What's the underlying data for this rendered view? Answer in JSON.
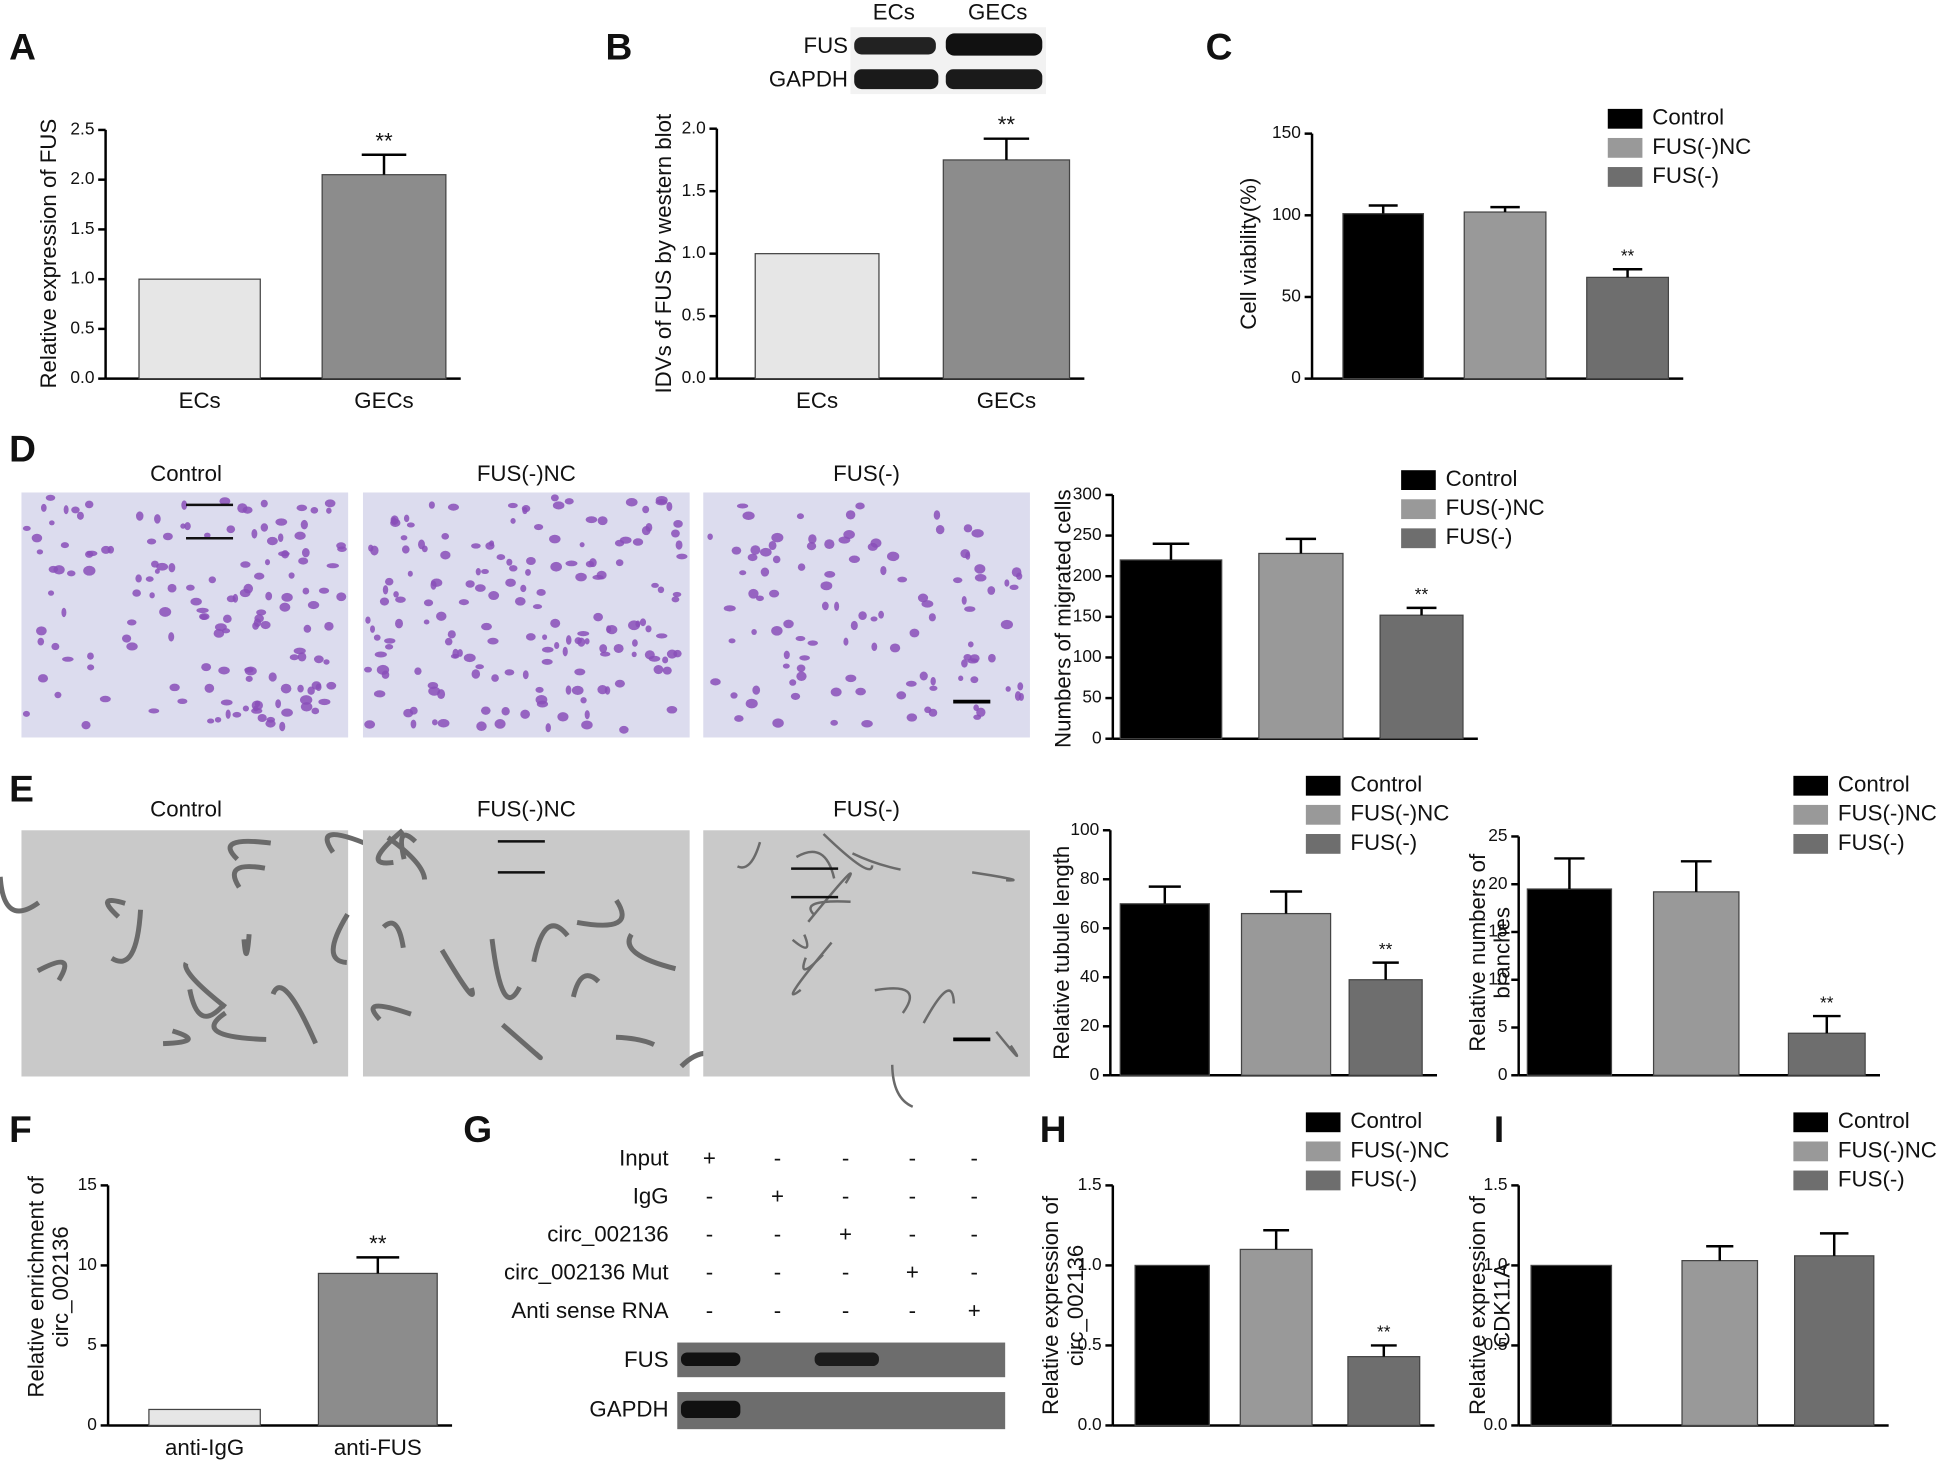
{
  "figure": {
    "panels": [
      "A",
      "B",
      "C",
      "D",
      "E",
      "F",
      "G",
      "H",
      "I"
    ],
    "B_blot": {
      "columns": [
        "ECs",
        "GECs"
      ],
      "rows": [
        "FUS",
        "GAPDH"
      ]
    },
    "D_images": [
      "Control",
      "FUS(-)NC",
      "FUS(-)"
    ],
    "E_images": [
      "Control",
      "FUS(-)NC",
      "FUS(-)"
    ],
    "G": {
      "rows": [
        {
          "label": "Input",
          "marks": [
            "+",
            "-",
            "-",
            "-",
            "-"
          ]
        },
        {
          "label": "IgG",
          "marks": [
            "-",
            "+",
            "-",
            "-",
            "-"
          ]
        },
        {
          "label": "circ_002136",
          "marks": [
            "-",
            "-",
            "+",
            "-",
            "-"
          ]
        },
        {
          "label": "circ_002136 Mut",
          "marks": [
            "-",
            "-",
            "-",
            "+",
            "-"
          ]
        },
        {
          "label": "Anti sense RNA",
          "marks": [
            "-",
            "-",
            "-",
            "-",
            "+"
          ]
        }
      ],
      "blot_rows": [
        "FUS",
        "GAPDH"
      ]
    }
  },
  "chart_data": [
    {
      "type": "bar",
      "ylabel": [
        "Relative expression of FUS"
      ],
      "categories": [
        "ECs",
        "GECs"
      ],
      "legend": false,
      "values": [
        1.0,
        2.05
      ],
      "errors": [
        null,
        0.2
      ],
      "significance": [
        null,
        "**"
      ],
      "colors": [
        "#e6e6e6",
        "#8c8c8c"
      ],
      "ylim": [
        0,
        2.5
      ],
      "yticks": [
        {
          "value": 0,
          "label": "0.0"
        },
        0.5,
        {
          "value": 1,
          "label": "1.0"
        },
        1.5,
        {
          "value": 2,
          "label": "2.0"
        },
        2.5
      ]
    },
    {
      "type": "bar",
      "ylabel": [
        "IDVs of FUS by western blot"
      ],
      "categories": [
        "ECs",
        "GECs"
      ],
      "legend": false,
      "values": [
        1.0,
        1.75
      ],
      "errors": [
        null,
        0.17
      ],
      "significance": [
        null,
        "**"
      ],
      "colors": [
        "#e6e6e6",
        "#8c8c8c"
      ],
      "ylim": [
        0,
        2.0
      ],
      "yticks": [
        {
          "value": 0,
          "label": "0.0"
        },
        0.5,
        {
          "value": 1,
          "label": "1.0"
        },
        1.5,
        {
          "value": 2,
          "label": "2.0"
        }
      ]
    },
    {
      "type": "bar",
      "ylabel": [
        "Cell viability(%)"
      ],
      "categories": [
        "Control",
        "FUS(-)NC",
        "FUS(-)"
      ],
      "legend": true,
      "values": [
        101,
        102,
        62
      ],
      "errors": [
        5,
        3,
        5
      ],
      "significance": [
        null,
        null,
        "**"
      ],
      "colors": [
        "#000000",
        "#999999",
        "#6e6e6e"
      ],
      "ylim": [
        0,
        150
      ],
      "yticks": [
        0,
        50,
        100,
        150
      ]
    },
    {
      "type": "bar",
      "ylabel": [
        "Numbers of migrated cells"
      ],
      "categories": [
        "Control",
        "FUS(-)NC",
        "FUS(-)"
      ],
      "legend": true,
      "values": [
        220,
        228,
        152
      ],
      "errors": [
        20,
        18,
        9
      ],
      "significance": [
        null,
        null,
        "**"
      ],
      "colors": [
        "#000000",
        "#999999",
        "#6e6e6e"
      ],
      "ylim": [
        0,
        300
      ],
      "yticks": [
        0,
        50,
        100,
        150,
        200,
        250,
        300
      ]
    },
    {
      "type": "bar",
      "ylabel": [
        "Relative tubule length"
      ],
      "categories": [
        "Control",
        "FUS(-)NC",
        "FUS(-)"
      ],
      "legend": true,
      "values": [
        70,
        66,
        39
      ],
      "errors": [
        7,
        9,
        7
      ],
      "significance": [
        null,
        null,
        "**"
      ],
      "colors": [
        "#000000",
        "#999999",
        "#6e6e6e"
      ],
      "ylim": [
        0,
        100
      ],
      "yticks": [
        0,
        20,
        40,
        60,
        80,
        100
      ]
    },
    {
      "type": "bar",
      "ylabel": [
        "Relative numbers of",
        "branches"
      ],
      "categories": [
        "Control",
        "FUS(-)NC",
        "FUS(-)"
      ],
      "legend": true,
      "values": [
        19.5,
        19.2,
        4.4
      ],
      "errors": [
        3.2,
        3.2,
        1.8
      ],
      "significance": [
        null,
        null,
        "**"
      ],
      "colors": [
        "#000000",
        "#999999",
        "#6e6e6e"
      ],
      "ylim": [
        0,
        25
      ],
      "yticks": [
        0,
        5,
        10,
        15,
        20,
        25
      ]
    },
    {
      "type": "bar",
      "ylabel": [
        "Relative enrichment of",
        "circ_002136"
      ],
      "categories": [
        "anti-IgG",
        "anti-FUS"
      ],
      "legend": false,
      "values": [
        1.0,
        9.5
      ],
      "errors": [
        null,
        1.0
      ],
      "significance": [
        null,
        "**"
      ],
      "colors": [
        "#e6e6e6",
        "#8c8c8c"
      ],
      "ylim": [
        0,
        15
      ],
      "yticks": [
        0,
        5,
        10,
        15
      ]
    },
    {
      "type": "bar",
      "ylabel": [
        "Relative expression of",
        "circ_002136"
      ],
      "categories": [
        "Control",
        "FUS(-)NC",
        "FUS(-)"
      ],
      "legend": true,
      "values": [
        1.0,
        1.1,
        0.43
      ],
      "errors": [
        null,
        0.12,
        0.07
      ],
      "significance": [
        null,
        null,
        "**"
      ],
      "colors": [
        "#000000",
        "#999999",
        "#6e6e6e"
      ],
      "ylim": [
        0,
        1.5
      ],
      "yticks": [
        {
          "value": 0,
          "label": "0.0"
        },
        0.5,
        {
          "value": 1,
          "label": "1.0"
        },
        1.5
      ]
    },
    {
      "type": "bar",
      "ylabel": [
        "Relative expression of",
        "CDK11A"
      ],
      "categories": [
        "Control",
        "FUS(-)NC",
        "FUS(-)"
      ],
      "legend": true,
      "values": [
        1.0,
        1.03,
        1.06
      ],
      "errors": [
        null,
        0.09,
        0.14
      ],
      "significance": [
        null,
        null,
        null
      ],
      "colors": [
        "#000000",
        "#999999",
        "#6e6e6e"
      ],
      "ylim": [
        0,
        1.5
      ],
      "yticks": [
        {
          "value": 0,
          "label": "0.0"
        },
        0.5,
        {
          "value": 1,
          "label": "1.0"
        },
        1.5
      ]
    }
  ]
}
